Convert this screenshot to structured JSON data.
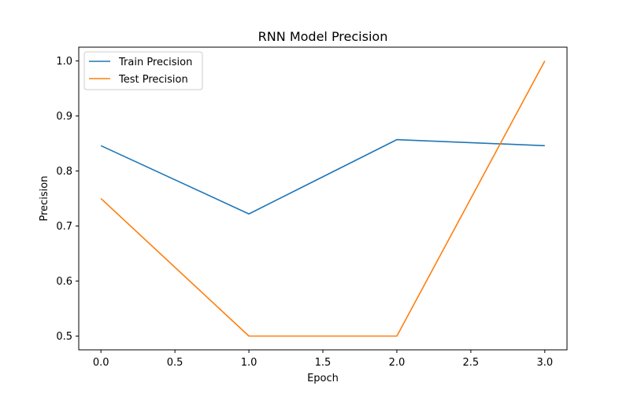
{
  "chart_data": {
    "type": "line",
    "title": "RNN Model Precision",
    "xlabel": "Epoch",
    "ylabel": "Precision",
    "x": [
      0,
      1,
      2,
      3
    ],
    "xlim": [
      -0.15,
      3.15
    ],
    "ylim": [
      0.475,
      1.025
    ],
    "xticks": [
      "0.0",
      "0.5",
      "1.0",
      "1.5",
      "2.0",
      "2.5",
      "3.0"
    ],
    "yticks": [
      "0.5",
      "0.6",
      "0.7",
      "0.8",
      "0.9",
      "1.0"
    ],
    "grid": false,
    "legend_position": "upper-left",
    "series": [
      {
        "name": "Train Precision",
        "color": "#1f77b4",
        "values": [
          0.846,
          0.722,
          0.857,
          0.846
        ]
      },
      {
        "name": "Test Precision",
        "color": "#ff7f0e",
        "values": [
          0.75,
          0.5,
          0.5,
          1.0
        ]
      }
    ]
  }
}
